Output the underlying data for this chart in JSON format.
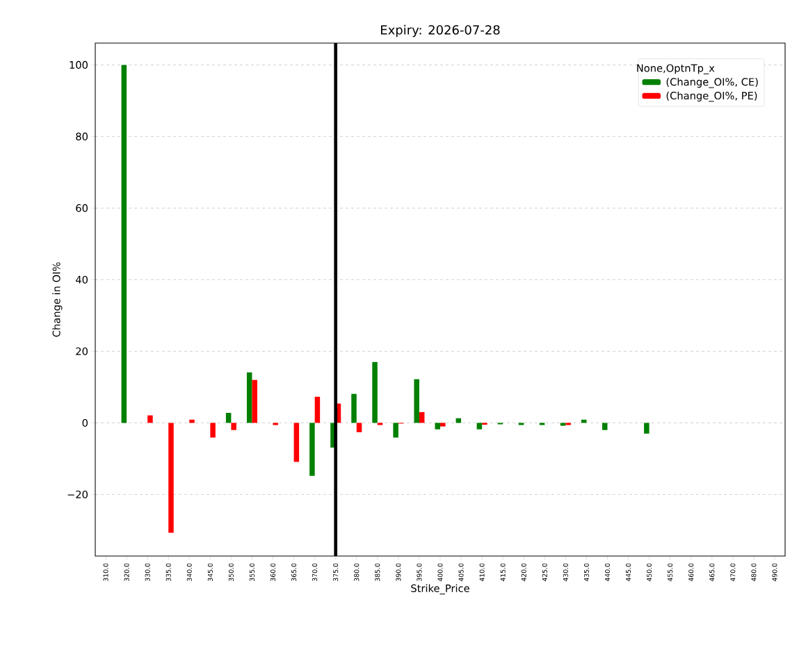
{
  "chart_data": {
    "type": "bar",
    "title": "Expiry: 2026-07-28",
    "xlabel": "Strike_Price",
    "ylabel": "Change in OI%",
    "legend_title": "None,OptnTp_x",
    "categories": [
      "310.0",
      "320.0",
      "330.0",
      "335.0",
      "340.0",
      "345.0",
      "350.0",
      "355.0",
      "360.0",
      "365.0",
      "370.0",
      "375.0",
      "380.0",
      "385.0",
      "390.0",
      "395.0",
      "400.0",
      "405.0",
      "410.0",
      "415.0",
      "420.0",
      "425.0",
      "430.0",
      "435.0",
      "440.0",
      "445.0",
      "450.0",
      "455.0",
      "460.0",
      "465.0",
      "470.0",
      "480.0",
      "490.0"
    ],
    "series": [
      {
        "name": " (Change_OI%, CE)",
        "color": "#008000",
        "values": [
          null,
          100,
          null,
          null,
          null,
          null,
          2.8,
          14.1,
          null,
          null,
          -14.8,
          -6.9,
          8.1,
          17.0,
          -4.1,
          12.2,
          -1.8,
          1.3,
          -1.8,
          -0.4,
          -0.6,
          -0.6,
          -0.8,
          0.9,
          -2.0,
          null,
          -3.0,
          null,
          null,
          null,
          null,
          null,
          null
        ]
      },
      {
        "name": " (Change_OI%, PE)",
        "color": "#ff0000",
        "values": [
          null,
          null,
          2.1,
          -30.7,
          0.9,
          -4.1,
          -2.0,
          12.0,
          -0.6,
          -10.9,
          7.3,
          5.4,
          -2.6,
          -0.6,
          -0.2,
          3.0,
          -1.0,
          null,
          -0.5,
          null,
          null,
          null,
          -0.6,
          null,
          null,
          null,
          null,
          null,
          null,
          null,
          null,
          null,
          null
        ]
      }
    ],
    "ylim": [
      -37.2,
      106.1
    ],
    "yticks": [
      {
        "value": -20,
        "label": "−20"
      },
      0,
      20,
      40,
      60,
      80,
      100
    ],
    "grid": "y",
    "legend": "top right",
    "ref_lines": [
      {
        "axis": "x",
        "value": "375.0",
        "color": "#000000"
      }
    ]
  }
}
